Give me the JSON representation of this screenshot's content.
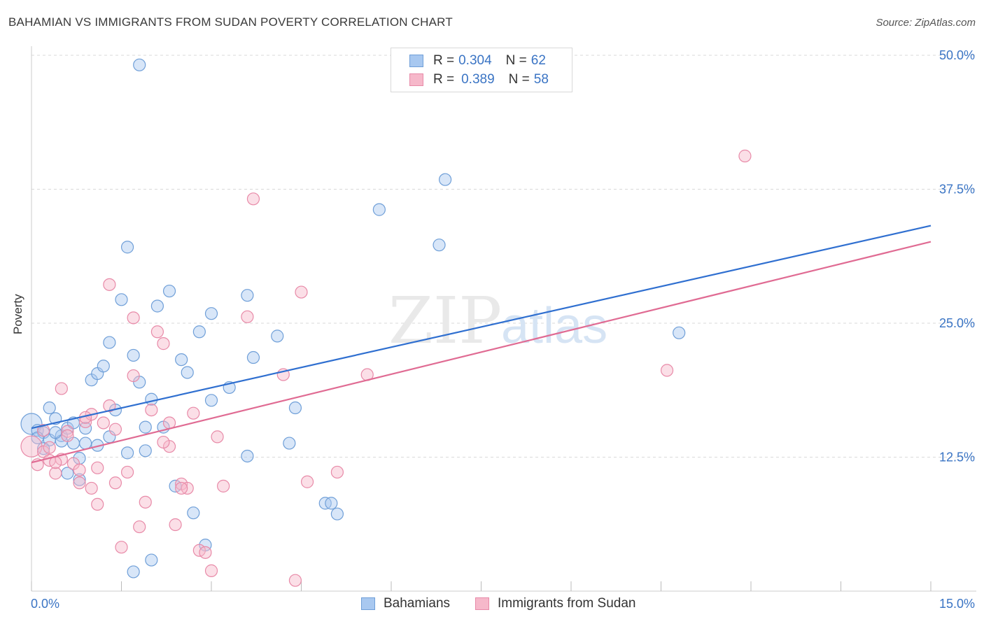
{
  "header": {
    "title": "BAHAMIAN VS IMMIGRANTS FROM SUDAN POVERTY CORRELATION CHART",
    "source": "Source: ZipAtlas.com"
  },
  "watermark": {
    "zip": "ZIP",
    "atlas": "atlas"
  },
  "legend": {
    "rows": [
      {
        "r_label": "R =",
        "r_value": "0.304",
        "n_label": "N =",
        "n_value": "62"
      },
      {
        "r_label": "R =",
        "r_value": "0.389",
        "n_label": "N =",
        "n_value": "58"
      }
    ]
  },
  "bottom_legend": [
    "Bahamians",
    "Immigrants from Sudan"
  ],
  "colors": {
    "blue_fill": "#a8c8f0",
    "blue_stroke": "#6f9fd8",
    "blue_line": "#2f6fd0",
    "pink_fill": "#f6b8ca",
    "pink_stroke": "#e88aa8",
    "pink_line": "#e06b93",
    "axis_label": "#3a74c4",
    "grid": "#d9d9d9"
  },
  "chart_data": {
    "type": "scatter",
    "title": "BAHAMIAN VS IMMIGRANTS FROM SUDAN POVERTY CORRELATION CHART",
    "xlabel": "",
    "ylabel": "Poverty",
    "xlim": [
      0,
      15
    ],
    "ylim": [
      0,
      50
    ],
    "x_tick_labels": [
      "0.0%",
      "15.0%"
    ],
    "y_ticks": [
      12.5,
      25.0,
      37.5,
      50.0
    ],
    "y_tick_labels": [
      "12.5%",
      "25.0%",
      "37.5%",
      "50.0%"
    ],
    "grid": true,
    "legend_position": "top-center",
    "series": [
      {
        "name": "Bahamians",
        "r": 0.304,
        "n": 62,
        "trend": {
          "x": [
            0,
            15
          ],
          "y": [
            15.2,
            34.1
          ]
        },
        "points": [
          [
            0.0,
            15.6
          ],
          [
            0.1,
            15.0
          ],
          [
            0.2,
            14.8
          ],
          [
            0.3,
            14.1
          ],
          [
            0.4,
            16.1
          ],
          [
            0.5,
            14.5
          ],
          [
            0.6,
            15.2
          ],
          [
            0.7,
            13.8
          ],
          [
            0.8,
            12.4
          ],
          [
            0.9,
            15.2
          ],
          [
            1.0,
            19.7
          ],
          [
            1.1,
            20.3
          ],
          [
            1.2,
            21.0
          ],
          [
            1.3,
            23.2
          ],
          [
            1.4,
            16.9
          ],
          [
            1.5,
            27.2
          ],
          [
            1.6,
            32.1
          ],
          [
            1.7,
            22.0
          ],
          [
            1.8,
            19.5
          ],
          [
            1.9,
            13.1
          ],
          [
            1.8,
            49.1
          ],
          [
            1.9,
            15.3
          ],
          [
            2.0,
            17.9
          ],
          [
            2.1,
            26.6
          ],
          [
            2.2,
            15.3
          ],
          [
            2.3,
            28.0
          ],
          [
            2.4,
            9.8
          ],
          [
            2.5,
            21.6
          ],
          [
            2.6,
            20.4
          ],
          [
            2.7,
            7.3
          ],
          [
            2.8,
            24.2
          ],
          [
            2.9,
            4.3
          ],
          [
            3.0,
            25.9
          ],
          [
            3.0,
            17.8
          ],
          [
            3.3,
            19.0
          ],
          [
            3.6,
            27.6
          ],
          [
            3.7,
            21.8
          ],
          [
            3.6,
            12.6
          ],
          [
            4.1,
            23.8
          ],
          [
            4.3,
            13.8
          ],
          [
            4.4,
            17.1
          ],
          [
            4.9,
            8.2
          ],
          [
            5.0,
            8.2
          ],
          [
            5.1,
            7.2
          ],
          [
            5.8,
            35.6
          ],
          [
            6.8,
            32.3
          ],
          [
            6.9,
            38.4
          ],
          [
            10.8,
            24.1
          ],
          [
            0.3,
            17.1
          ],
          [
            0.5,
            14.0
          ],
          [
            0.8,
            10.4
          ],
          [
            0.9,
            13.8
          ],
          [
            1.1,
            13.6
          ],
          [
            1.3,
            14.4
          ],
          [
            1.6,
            12.9
          ],
          [
            1.7,
            1.8
          ],
          [
            2.0,
            2.9
          ],
          [
            0.1,
            14.3
          ],
          [
            0.2,
            13.3
          ],
          [
            0.4,
            14.8
          ],
          [
            0.6,
            11.0
          ],
          [
            0.7,
            15.7
          ]
        ]
      },
      {
        "name": "Immigrants from Sudan",
        "r": 0.389,
        "n": 58,
        "trend": {
          "x": [
            0,
            15
          ],
          "y": [
            12.0,
            32.6
          ]
        },
        "points": [
          [
            0.0,
            13.5
          ],
          [
            0.1,
            11.8
          ],
          [
            0.2,
            13.0
          ],
          [
            0.3,
            12.2
          ],
          [
            0.4,
            11.0
          ],
          [
            0.5,
            18.9
          ],
          [
            0.6,
            14.9
          ],
          [
            0.7,
            11.9
          ],
          [
            0.8,
            11.3
          ],
          [
            0.9,
            15.8
          ],
          [
            1.0,
            16.5
          ],
          [
            1.0,
            9.6
          ],
          [
            1.1,
            8.1
          ],
          [
            1.2,
            15.7
          ],
          [
            1.3,
            17.3
          ],
          [
            1.4,
            10.1
          ],
          [
            1.5,
            4.1
          ],
          [
            1.6,
            11.1
          ],
          [
            1.7,
            25.5
          ],
          [
            1.8,
            6.0
          ],
          [
            1.9,
            8.3
          ],
          [
            2.0,
            16.9
          ],
          [
            2.1,
            24.2
          ],
          [
            2.2,
            23.1
          ],
          [
            2.3,
            13.5
          ],
          [
            2.3,
            15.7
          ],
          [
            2.4,
            6.2
          ],
          [
            2.5,
            10.0
          ],
          [
            2.6,
            9.6
          ],
          [
            2.7,
            16.6
          ],
          [
            2.8,
            3.8
          ],
          [
            2.9,
            3.6
          ],
          [
            3.0,
            1.9
          ],
          [
            3.1,
            14.4
          ],
          [
            3.2,
            9.8
          ],
          [
            3.6,
            25.6
          ],
          [
            3.7,
            36.6
          ],
          [
            4.2,
            20.2
          ],
          [
            4.4,
            1.0
          ],
          [
            4.5,
            27.9
          ],
          [
            4.6,
            10.2
          ],
          [
            5.1,
            11.1
          ],
          [
            5.6,
            20.2
          ],
          [
            10.6,
            20.6
          ],
          [
            11.9,
            40.6
          ],
          [
            1.3,
            28.6
          ],
          [
            0.2,
            15.0
          ],
          [
            0.3,
            13.4
          ],
          [
            0.5,
            12.3
          ],
          [
            0.6,
            14.5
          ],
          [
            0.8,
            10.1
          ],
          [
            1.1,
            11.5
          ],
          [
            1.4,
            15.1
          ],
          [
            1.7,
            20.1
          ],
          [
            2.2,
            13.9
          ],
          [
            2.5,
            9.6
          ],
          [
            0.4,
            12.0
          ],
          [
            0.9,
            16.2
          ]
        ]
      }
    ]
  }
}
